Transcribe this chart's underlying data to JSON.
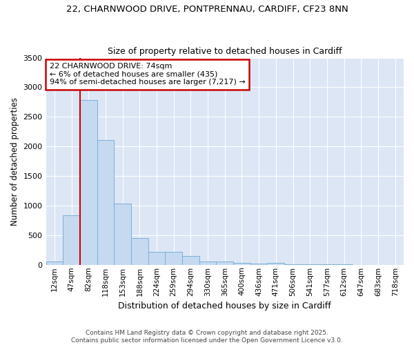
{
  "title_line1": "22, CHARNWOOD DRIVE, PONTPRENNAU, CARDIFF, CF23 8NN",
  "title_line2": "Size of property relative to detached houses in Cardiff",
  "xlabel": "Distribution of detached houses by size in Cardiff",
  "ylabel": "Number of detached properties",
  "categories": [
    "12sqm",
    "47sqm",
    "82sqm",
    "118sqm",
    "153sqm",
    "188sqm",
    "224sqm",
    "259sqm",
    "294sqm",
    "330sqm",
    "365sqm",
    "400sqm",
    "436sqm",
    "471sqm",
    "506sqm",
    "541sqm",
    "577sqm",
    "612sqm",
    "647sqm",
    "683sqm",
    "718sqm"
  ],
  "values": [
    50,
    840,
    2780,
    2110,
    1040,
    455,
    220,
    215,
    145,
    60,
    50,
    30,
    15,
    30,
    10,
    5,
    5,
    5,
    3,
    3,
    2
  ],
  "bar_color": "#c5d9f0",
  "bar_edge_color": "#7ab0d8",
  "vline_x": 2,
  "vline_color": "#cc0000",
  "annotation_title": "22 CHARNWOOD DRIVE: 74sqm",
  "annotation_line2": "← 6% of detached houses are smaller (435)",
  "annotation_line3": "94% of semi-detached houses are larger (7,217) →",
  "annotation_box_color": "#cc0000",
  "ylim": [
    0,
    3500
  ],
  "plot_bg_color": "#dce6f5",
  "fig_bg_color": "#ffffff",
  "grid_color": "#ffffff",
  "footnote": "Contains HM Land Registry data © Crown copyright and database right 2025.\nContains public sector information licensed under the Open Government Licence v3.0."
}
